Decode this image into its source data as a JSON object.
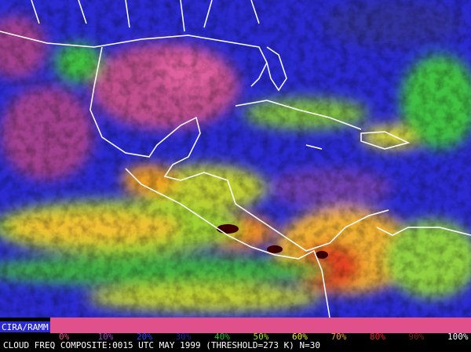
{
  "legend": {
    "source": "CIRA/RAMM",
    "labels": [
      {
        "text": "0%",
        "color": "#e0508a"
      },
      {
        "text": "10%",
        "color": "#a040c0"
      },
      {
        "text": "20%",
        "color": "#3040ff"
      },
      {
        "text": "30%",
        "color": "#2020a0"
      },
      {
        "text": "40%",
        "color": "#20c020"
      },
      {
        "text": "50%",
        "color": "#a0e020"
      },
      {
        "text": "60%",
        "color": "#f0f020"
      },
      {
        "text": "70%",
        "color": "#f0a020"
      },
      {
        "text": "80%",
        "color": "#f02020"
      },
      {
        "text": "90%",
        "color": "#802020"
      },
      {
        "text": "100%",
        "color": "#ffffff"
      }
    ]
  },
  "caption": "CLOUD FREQ COMPOSITE:0015 UTC MAY 1999 (THRESHOLD=273 K) N=30"
}
